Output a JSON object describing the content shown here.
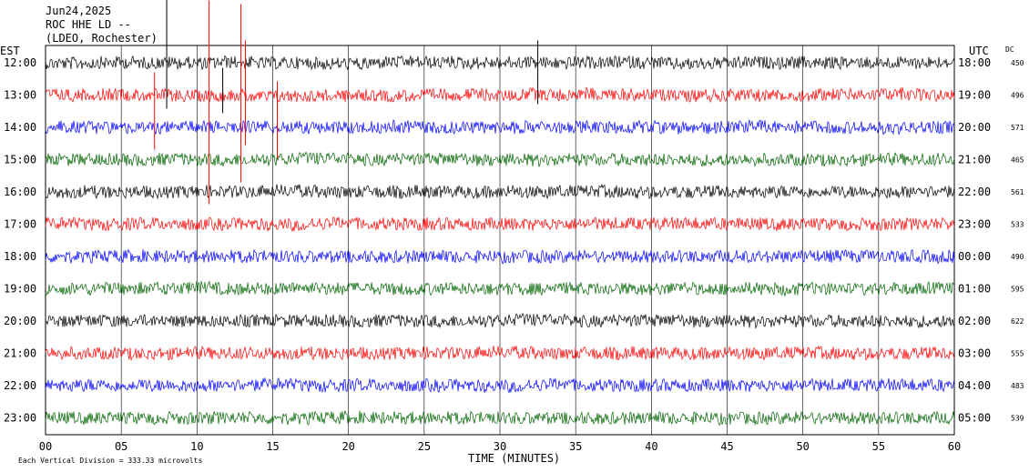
{
  "header": {
    "date": "Jun24,2025",
    "station": "ROC HHE LD --",
    "network": "(LDEO, Rochester)"
  },
  "chart_data": {
    "type": "line",
    "title": "",
    "left_axis_label": "EST",
    "right_axis_label": "UTC",
    "dc_label": "DC",
    "xlabel": "TIME (MINUTES)",
    "xlim": [
      0,
      60
    ],
    "x_ticks": [
      "00",
      "05",
      "10",
      "15",
      "20",
      "25",
      "30",
      "35",
      "40",
      "45",
      "50",
      "55",
      "60"
    ],
    "scale_note": "Each Vertical Division =  333.33 microvolts",
    "grid": true,
    "traces": [
      {
        "est": "12:00",
        "utc": "18:00",
        "dc": "450",
        "color": "#000000"
      },
      {
        "est": "13:00",
        "utc": "19:00",
        "dc": "496",
        "color": "#ff0000"
      },
      {
        "est": "14:00",
        "utc": "20:00",
        "dc": "571",
        "color": "#0000ff"
      },
      {
        "est": "15:00",
        "utc": "21:00",
        "dc": "465",
        "color": "#006400"
      },
      {
        "est": "16:00",
        "utc": "22:00",
        "dc": "561",
        "color": "#000000"
      },
      {
        "est": "17:00",
        "utc": "23:00",
        "dc": "533",
        "color": "#ff0000"
      },
      {
        "est": "18:00",
        "utc": "00:00",
        "dc": "490",
        "color": "#0000ff"
      },
      {
        "est": "19:00",
        "utc": "01:00",
        "dc": "595",
        "color": "#006400"
      },
      {
        "est": "20:00",
        "utc": "02:00",
        "dc": "622",
        "color": "#000000"
      },
      {
        "est": "21:00",
        "utc": "03:00",
        "dc": "555",
        "color": "#ff0000"
      },
      {
        "est": "22:00",
        "utc": "04:00",
        "dc": "483",
        "color": "#0000ff"
      },
      {
        "est": "23:00",
        "utc": "05:00",
        "dc": "539",
        "color": "#006400"
      }
    ]
  }
}
